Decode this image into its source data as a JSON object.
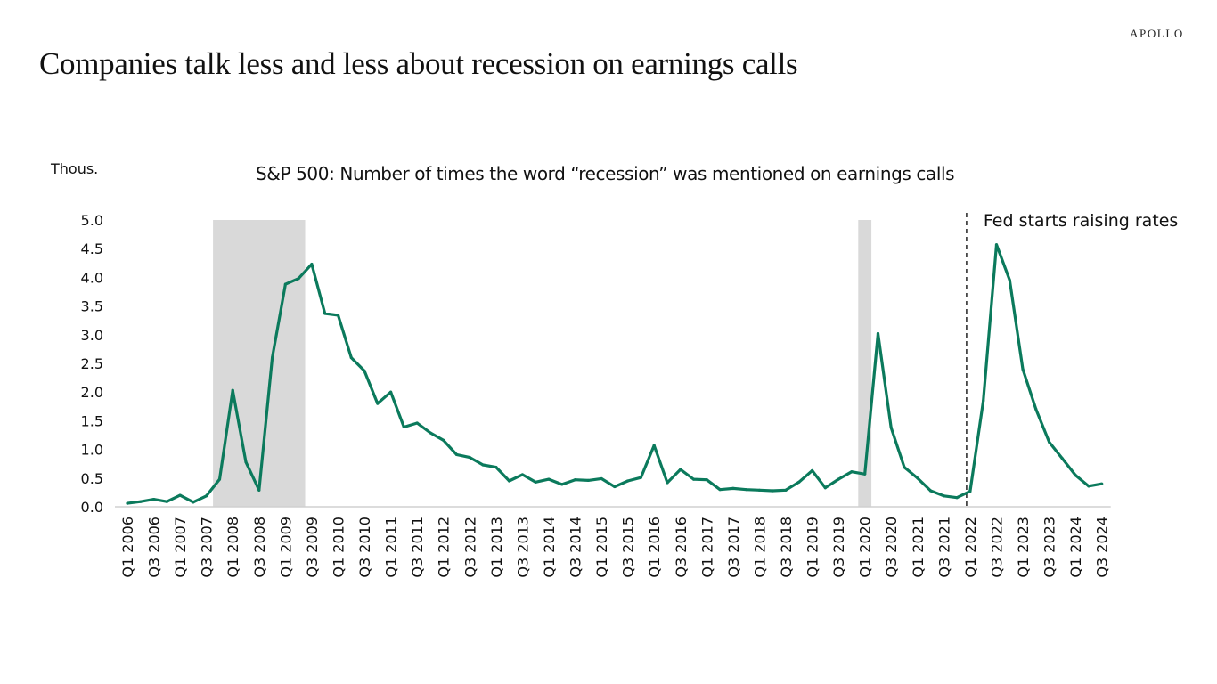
{
  "header": {
    "brand": "APOLLO",
    "title": "Companies talk less and less about recession on earnings calls"
  },
  "colors": {
    "line": "#0b7a5c",
    "recession_shade": "#d9d9d9",
    "axis": "#d0d0d0",
    "annotation_line": "#222222"
  },
  "chart_data": {
    "type": "line",
    "title": "S&P 500: Number of times the word “recession” was mentioned on earnings calls",
    "ylabel": "Thous.",
    "xlabel": "",
    "ylim": [
      0,
      5
    ],
    "yticks": [
      "0.0",
      "0.5",
      "1.0",
      "1.5",
      "2.0",
      "2.5",
      "3.0",
      "3.5",
      "4.0",
      "4.5",
      "5.0"
    ],
    "ytick_values": [
      0,
      0.5,
      1.0,
      1.5,
      2.0,
      2.5,
      3.0,
      3.5,
      4.0,
      4.5,
      5.0
    ],
    "grid": false,
    "x": [
      "Q1 2006",
      "Q2 2006",
      "Q3 2006",
      "Q4 2006",
      "Q1 2007",
      "Q2 2007",
      "Q3 2007",
      "Q4 2007",
      "Q1 2008",
      "Q2 2008",
      "Q3 2008",
      "Q4 2008",
      "Q1 2009",
      "Q2 2009",
      "Q3 2009",
      "Q4 2009",
      "Q1 2010",
      "Q2 2010",
      "Q3 2010",
      "Q4 2010",
      "Q1 2011",
      "Q2 2011",
      "Q3 2011",
      "Q4 2011",
      "Q1 2012",
      "Q2 2012",
      "Q3 2012",
      "Q4 2012",
      "Q1 2013",
      "Q2 2013",
      "Q3 2013",
      "Q4 2013",
      "Q1 2014",
      "Q2 2014",
      "Q3 2014",
      "Q4 2014",
      "Q1 2015",
      "Q2 2015",
      "Q3 2015",
      "Q4 2015",
      "Q1 2016",
      "Q2 2016",
      "Q3 2016",
      "Q4 2016",
      "Q1 2017",
      "Q2 2017",
      "Q3 2017",
      "Q4 2017",
      "Q1 2018",
      "Q2 2018",
      "Q3 2018",
      "Q4 2018",
      "Q1 2019",
      "Q2 2019",
      "Q3 2019",
      "Q4 2019",
      "Q1 2020",
      "Q2 2020",
      "Q3 2020",
      "Q4 2020",
      "Q1 2021",
      "Q2 2021",
      "Q3 2021",
      "Q4 2021",
      "Q1 2022",
      "Q2 2022",
      "Q3 2022",
      "Q4 2022",
      "Q1 2023",
      "Q2 2023",
      "Q3 2023",
      "Q4 2023",
      "Q1 2024",
      "Q2 2024",
      "Q3 2024"
    ],
    "xtick_labels": [
      "Q1 2006",
      "Q3 2006",
      "Q1 2007",
      "Q3 2007",
      "Q1 2008",
      "Q3 2008",
      "Q1 2009",
      "Q3 2009",
      "Q1 2010",
      "Q3 2010",
      "Q1 2011",
      "Q3 2011",
      "Q1 2012",
      "Q3 2012",
      "Q1 2013",
      "Q3 2013",
      "Q1 2014",
      "Q3 2014",
      "Q1 2015",
      "Q3 2015",
      "Q1 2016",
      "Q3 2016",
      "Q1 2017",
      "Q3 2017",
      "Q1 2018",
      "Q3 2018",
      "Q1 2019",
      "Q3 2019",
      "Q1 2020",
      "Q3 2020",
      "Q1 2021",
      "Q3 2021",
      "Q1 2022",
      "Q3 2022",
      "Q1 2023",
      "Q3 2023",
      "Q1 2024",
      "Q3 2024"
    ],
    "series": [
      {
        "name": "Recession mentions (thous.)",
        "values": [
          0.06,
          0.09,
          0.13,
          0.09,
          0.2,
          0.08,
          0.19,
          0.48,
          2.03,
          0.78,
          0.29,
          2.6,
          3.88,
          3.98,
          4.23,
          3.37,
          3.34,
          2.6,
          2.37,
          1.8,
          2.0,
          1.39,
          1.46,
          1.29,
          1.16,
          0.91,
          0.86,
          0.73,
          0.69,
          0.45,
          0.56,
          0.43,
          0.48,
          0.39,
          0.47,
          0.46,
          0.49,
          0.35,
          0.45,
          0.51,
          1.07,
          0.42,
          0.65,
          0.48,
          0.47,
          0.3,
          0.32,
          0.3,
          0.29,
          0.28,
          0.29,
          0.43,
          0.63,
          0.33,
          0.48,
          0.61,
          0.57,
          3.02,
          1.38,
          0.69,
          0.5,
          0.28,
          0.19,
          0.16,
          0.27,
          1.85,
          4.57,
          3.95,
          2.4,
          1.7,
          1.13,
          0.84,
          0.55,
          0.36,
          0.4
        ]
      }
    ],
    "recession_periods": [
      {
        "start": "Q4 2007",
        "end": "Q2 2009"
      },
      {
        "start": "Q1 2020",
        "end": "Q1 2020"
      }
    ],
    "annotations": [
      {
        "text": "Fed starts raising rates",
        "at": "Q1 2022",
        "style": "dashed-vertical-line"
      }
    ],
    "legend": "none"
  }
}
